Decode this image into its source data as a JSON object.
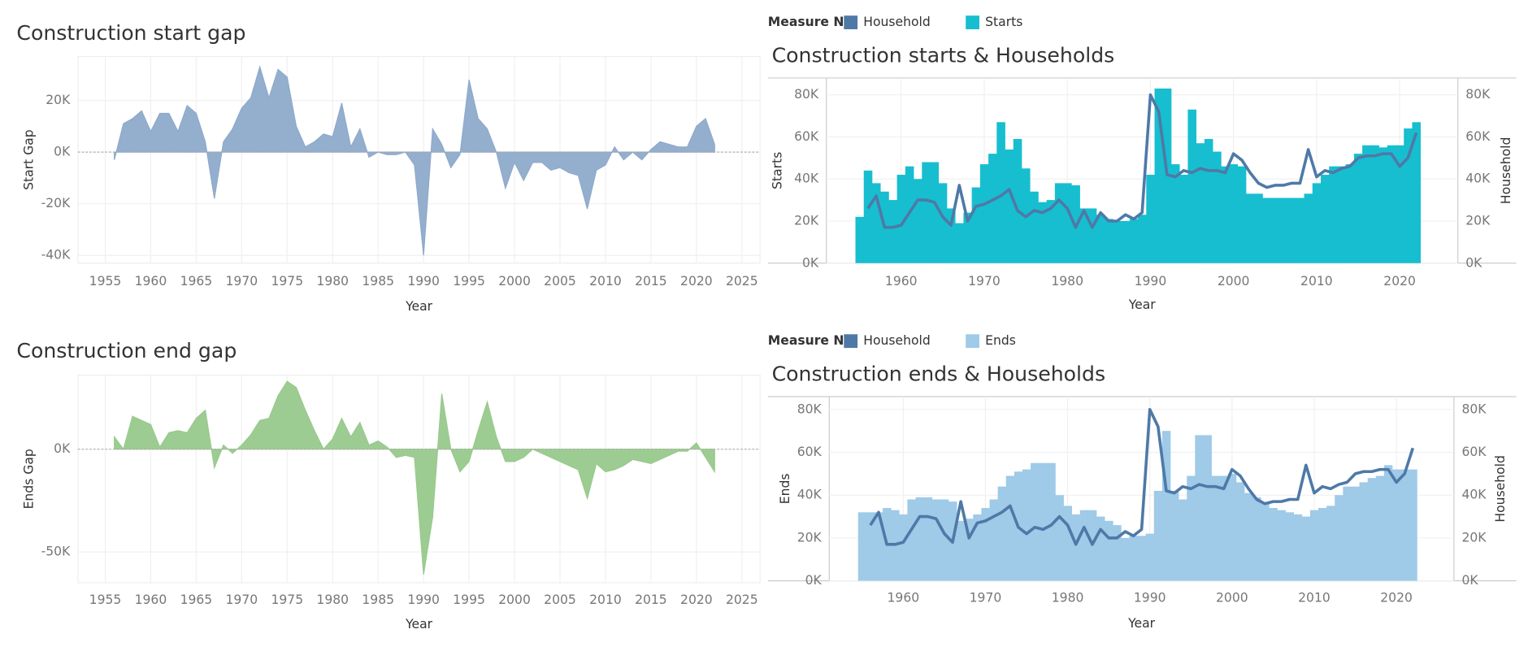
{
  "chart_data": [
    {
      "type": "area",
      "title": "Construction start gap",
      "x_label": "Year",
      "y_label": "Start Gap",
      "x": [
        1956,
        1957,
        1958,
        1959,
        1960,
        1961,
        1962,
        1963,
        1964,
        1965,
        1966,
        1967,
        1968,
        1969,
        1970,
        1971,
        1972,
        1973,
        1974,
        1975,
        1976,
        1977,
        1978,
        1979,
        1980,
        1981,
        1982,
        1983,
        1984,
        1985,
        1986,
        1987,
        1988,
        1989,
        1990,
        1991,
        1992,
        1993,
        1994,
        1995,
        1996,
        1997,
        1998,
        1999,
        2000,
        2001,
        2002,
        2003,
        2004,
        2005,
        2006,
        2007,
        2008,
        2009,
        2010,
        2011,
        2012,
        2013,
        2014,
        2015,
        2016,
        2017,
        2018,
        2019,
        2020,
        2021,
        2022
      ],
      "values": [
        -3000,
        11000,
        13000,
        16000,
        8000,
        15000,
        15000,
        8000,
        18000,
        15000,
        4000,
        -18000,
        4000,
        9000,
        17000,
        21000,
        33000,
        21000,
        32000,
        29000,
        10000,
        2000,
        4000,
        7000,
        6000,
        19000,
        2000,
        9000,
        -2000,
        0,
        -1000,
        -1000,
        0,
        -5000,
        -40000,
        9000,
        3000,
        -6000,
        -1000,
        28000,
        13000,
        9000,
        0,
        -14000,
        -4000,
        -11000,
        -4000,
        -4000,
        -7000,
        -6000,
        -8000,
        -9000,
        -22000,
        -7000,
        -5000,
        2000,
        -3000,
        0,
        -3000,
        1000,
        4000,
        3000,
        2000,
        2000,
        10000,
        13000,
        3000
      ],
      "color": "#8eaacb",
      "xlim": [
        1952,
        2027
      ],
      "xticks": [
        1955,
        1960,
        1965,
        1970,
        1975,
        1980,
        1985,
        1990,
        1995,
        2000,
        2005,
        2010,
        2015,
        2020,
        2025
      ],
      "ylim": [
        -43000,
        37000
      ],
      "yticks": [
        {
          "value": -40000,
          "label": "-40K"
        },
        {
          "value": -20000,
          "label": "-20K"
        },
        {
          "value": 0,
          "label": "0K"
        },
        {
          "value": 20000,
          "label": "20K"
        }
      ],
      "grid": true
    },
    {
      "type": "bar_line",
      "title": "Construction starts & Households",
      "legend_title": "Measure N..",
      "x_label": "Year",
      "y_label": "Starts",
      "y2_label": "Household",
      "x": [
        1955,
        1956,
        1957,
        1958,
        1959,
        1960,
        1961,
        1962,
        1963,
        1964,
        1965,
        1966,
        1967,
        1968,
        1969,
        1970,
        1971,
        1972,
        1973,
        1974,
        1975,
        1976,
        1977,
        1978,
        1979,
        1980,
        1981,
        1982,
        1983,
        1984,
        1985,
        1986,
        1987,
        1988,
        1989,
        1990,
        1991,
        1992,
        1993,
        1994,
        1995,
        1996,
        1997,
        1998,
        1999,
        2000,
        2001,
        2002,
        2003,
        2004,
        2005,
        2006,
        2007,
        2008,
        2009,
        2010,
        2011,
        2012,
        2013,
        2014,
        2015,
        2016,
        2017,
        2018,
        2019,
        2020,
        2021,
        2022
      ],
      "series": [
        {
          "name": "Household",
          "type": "line",
          "axis": "y2",
          "color": "#4e79a7",
          "values": [
            null,
            26000,
            32000,
            17000,
            17000,
            18000,
            24000,
            30000,
            30000,
            29000,
            22000,
            18000,
            37000,
            20000,
            27000,
            28000,
            30000,
            32000,
            35000,
            25000,
            22000,
            25000,
            24000,
            26000,
            30000,
            26000,
            17000,
            25000,
            17000,
            24000,
            20000,
            20000,
            23000,
            21000,
            24000,
            80000,
            72000,
            42000,
            41000,
            44000,
            43000,
            45000,
            44000,
            44000,
            43000,
            52000,
            49000,
            43000,
            38000,
            36000,
            37000,
            37000,
            38000,
            38000,
            54000,
            41000,
            44000,
            43000,
            45000,
            46000,
            50000,
            51000,
            51000,
            52000,
            52000,
            46000,
            50000,
            62000
          ]
        },
        {
          "name": "Starts",
          "type": "bar",
          "axis": "y",
          "color": "#17becf",
          "values": [
            22000,
            44000,
            38000,
            34000,
            30000,
            42000,
            46000,
            40000,
            48000,
            48000,
            38000,
            26000,
            19000,
            24000,
            36000,
            47000,
            52000,
            67000,
            54000,
            59000,
            45000,
            34000,
            29000,
            30000,
            38000,
            38000,
            37000,
            26000,
            26000,
            23000,
            21000,
            20000,
            20000,
            21000,
            23000,
            42000,
            83000,
            83000,
            47000,
            42000,
            73000,
            57000,
            59000,
            53000,
            46000,
            47000,
            46000,
            33000,
            33000,
            31000,
            31000,
            31000,
            31000,
            31000,
            33000,
            38000,
            42000,
            46000,
            46000,
            47000,
            52000,
            56000,
            56000,
            55000,
            56000,
            56000,
            64000,
            67000
          ]
        }
      ],
      "xlim": [
        1951,
        2027
      ],
      "xticks": [
        1960,
        1970,
        1980,
        1990,
        2000,
        2010,
        2020
      ],
      "ylim": [
        0,
        88000
      ],
      "yticks": [
        {
          "value": 0,
          "label": "0K"
        },
        {
          "value": 20000,
          "label": "20K"
        },
        {
          "value": 40000,
          "label": "40K"
        },
        {
          "value": 60000,
          "label": "60K"
        },
        {
          "value": 80000,
          "label": "80K"
        }
      ],
      "y2lim": [
        0,
        88000
      ],
      "y2ticks": [
        {
          "value": 0,
          "label": "0K"
        },
        {
          "value": 20000,
          "label": "20K"
        },
        {
          "value": 40000,
          "label": "40K"
        },
        {
          "value": 60000,
          "label": "60K"
        },
        {
          "value": 80000,
          "label": "80K"
        }
      ],
      "grid": true
    },
    {
      "type": "area",
      "title": "Construction end gap",
      "x_label": "Year",
      "y_label": "Ends Gap",
      "x": [
        1956,
        1957,
        1958,
        1959,
        1960,
        1961,
        1962,
        1963,
        1964,
        1965,
        1966,
        1967,
        1968,
        1969,
        1970,
        1971,
        1972,
        1973,
        1974,
        1975,
        1976,
        1977,
        1978,
        1979,
        1980,
        1981,
        1982,
        1983,
        1984,
        1985,
        1986,
        1987,
        1988,
        1989,
        1990,
        1991,
        1992,
        1993,
        1994,
        1995,
        1996,
        1997,
        1998,
        1999,
        2000,
        2001,
        2002,
        2003,
        2004,
        2005,
        2006,
        2007,
        2008,
        2009,
        2010,
        2011,
        2012,
        2013,
        2014,
        2015,
        2016,
        2017,
        2018,
        2019,
        2020,
        2021,
        2022
      ],
      "values": [
        6000,
        0,
        16000,
        14000,
        12000,
        1000,
        8000,
        9000,
        8000,
        15000,
        19000,
        -9000,
        2000,
        -2000,
        2000,
        7000,
        14000,
        15000,
        26000,
        33000,
        30000,
        19000,
        9000,
        0,
        5000,
        15000,
        6000,
        13000,
        2000,
        4000,
        1000,
        -4000,
        -3000,
        -4000,
        -61000,
        -33000,
        27000,
        0,
        -11000,
        -6000,
        9000,
        23000,
        6000,
        -6000,
        -6000,
        -4000,
        0,
        -2000,
        -4000,
        -6000,
        -8000,
        -10000,
        -24000,
        -7000,
        -11000,
        -10000,
        -8000,
        -5000,
        -6000,
        -7000,
        -5000,
        -3000,
        -1000,
        -1000,
        3000,
        -4000,
        -11000
      ],
      "color": "#98c98c",
      "xlim": [
        1952,
        2027
      ],
      "xticks": [
        1955,
        1960,
        1965,
        1970,
        1975,
        1980,
        1985,
        1990,
        1995,
        2000,
        2005,
        2010,
        2015,
        2020,
        2025
      ],
      "ylim": [
        -65000,
        36000
      ],
      "yticks": [
        {
          "value": -50000,
          "label": "-50K"
        },
        {
          "value": 0,
          "label": "0K"
        }
      ],
      "grid": true
    },
    {
      "type": "bar_line",
      "title": "Construction ends & Households",
      "legend_title": "Measure N..",
      "x_label": "Year",
      "y_label": "Ends",
      "y2_label": "Household",
      "x": [
        1955,
        1956,
        1957,
        1958,
        1959,
        1960,
        1961,
        1962,
        1963,
        1964,
        1965,
        1966,
        1967,
        1968,
        1969,
        1970,
        1971,
        1972,
        1973,
        1974,
        1975,
        1976,
        1977,
        1978,
        1979,
        1980,
        1981,
        1982,
        1983,
        1984,
        1985,
        1986,
        1987,
        1988,
        1989,
        1990,
        1991,
        1992,
        1993,
        1994,
        1995,
        1996,
        1997,
        1998,
        1999,
        2000,
        2001,
        2002,
        2003,
        2004,
        2005,
        2006,
        2007,
        2008,
        2009,
        2010,
        2011,
        2012,
        2013,
        2014,
        2015,
        2016,
        2017,
        2018,
        2019,
        2020,
        2021,
        2022
      ],
      "series": [
        {
          "name": "Household",
          "type": "line",
          "axis": "y2",
          "color": "#4e79a7",
          "values": [
            null,
            26000,
            32000,
            17000,
            17000,
            18000,
            24000,
            30000,
            30000,
            29000,
            22000,
            18000,
            37000,
            20000,
            27000,
            28000,
            30000,
            32000,
            35000,
            25000,
            22000,
            25000,
            24000,
            26000,
            30000,
            26000,
            17000,
            25000,
            17000,
            24000,
            20000,
            20000,
            23000,
            21000,
            24000,
            80000,
            72000,
            42000,
            41000,
            44000,
            43000,
            45000,
            44000,
            44000,
            43000,
            52000,
            49000,
            43000,
            38000,
            36000,
            37000,
            37000,
            38000,
            38000,
            54000,
            41000,
            44000,
            43000,
            45000,
            46000,
            50000,
            51000,
            51000,
            52000,
            52000,
            46000,
            50000,
            62000
          ]
        },
        {
          "name": "Ends",
          "type": "bar",
          "axis": "y",
          "color": "#9fcae8",
          "values": [
            32000,
            32000,
            32000,
            34000,
            33000,
            31000,
            38000,
            39000,
            39000,
            38000,
            38000,
            37000,
            28000,
            29000,
            31000,
            34000,
            38000,
            44000,
            49000,
            51000,
            52000,
            55000,
            55000,
            55000,
            40000,
            35000,
            31000,
            33000,
            33000,
            30000,
            28000,
            26000,
            20000,
            21000,
            21000,
            22000,
            42000,
            70000,
            42000,
            38000,
            49000,
            68000,
            68000,
            49000,
            49000,
            50000,
            46000,
            41000,
            39000,
            36000,
            34000,
            33000,
            32000,
            31000,
            30000,
            33000,
            34000,
            35000,
            40000,
            44000,
            44000,
            46000,
            48000,
            49000,
            54000,
            52000,
            52000,
            52000
          ]
        }
      ],
      "xlim": [
        1951,
        2027
      ],
      "xticks": [
        1960,
        1970,
        1980,
        1990,
        2000,
        2010,
        2020
      ],
      "ylim": [
        0,
        86000
      ],
      "yticks": [
        {
          "value": 0,
          "label": "0K"
        },
        {
          "value": 20000,
          "label": "20K"
        },
        {
          "value": 40000,
          "label": "40K"
        },
        {
          "value": 60000,
          "label": "60K"
        },
        {
          "value": 80000,
          "label": "80K"
        }
      ],
      "y2lim": [
        0,
        86000
      ],
      "y2ticks": [
        {
          "value": 0,
          "label": "0K"
        },
        {
          "value": 20000,
          "label": "20K"
        },
        {
          "value": 40000,
          "label": "40K"
        },
        {
          "value": 60000,
          "label": "60K"
        },
        {
          "value": 80000,
          "label": "80K"
        }
      ],
      "grid": true
    }
  ]
}
